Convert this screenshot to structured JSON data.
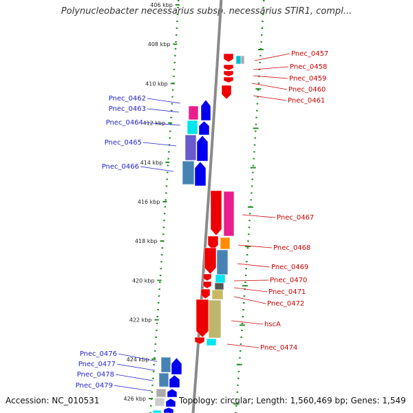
{
  "title": "Polynucleobacter necessarius subsp. necessarius STIR1, compl...",
  "footer": {
    "accession": "Accession: NC_010531",
    "stats": "Topology: circular; Length: 1,560,469 bp; Genes: 1,549"
  },
  "colors": {
    "forward_label": "#1f1fcc",
    "reverse_label": "#cc0000",
    "backbone": "#8a8a8a",
    "ring_dots": "#228b22",
    "strand_forward": "#0000ee",
    "strand_reverse": "#ee0000"
  },
  "axis_ticks": [
    "406 kbp",
    "408 kbp",
    "410 kbp",
    "412 kbp",
    "414 kbp",
    "416 kbp",
    "418 kbp",
    "420 kbp",
    "422 kbp",
    "424 kbp",
    "426 kbp"
  ],
  "forward_genes": [
    "Pnec_0462",
    "Pnec_0463",
    "Pnec_0464",
    "Pnec_0465",
    "Pnec_0466",
    "Pnec_0476",
    "Pnec_0477",
    "Pnec_0478",
    "Pnec_0479"
  ],
  "reverse_genes": [
    "Pnec_0457",
    "Pnec_0458",
    "Pnec_0459",
    "Pnec_0460",
    "Pnec_0461",
    "Pnec_0467",
    "Pnec_0468",
    "Pnec_0469",
    "Pnec_0470",
    "Pnec_0471",
    "Pnec_0472",
    "hscA",
    "Pnec_0474"
  ]
}
